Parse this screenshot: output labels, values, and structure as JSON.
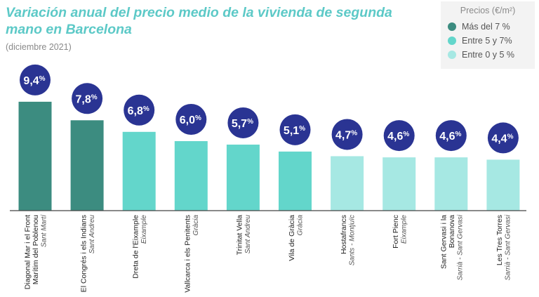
{
  "title": "Variación anual del precio medio de la vivienda de segunda mano en Barcelona",
  "subtitle": "(diciembre 2021)",
  "legend": {
    "title": "Precios (€/m²)",
    "items": [
      {
        "label": "Más del 7 %",
        "color": "#3c8c80"
      },
      {
        "label": "Entre 5 y 7%",
        "color": "#63d6cb"
      },
      {
        "label": "Entre 0 y 5 %",
        "color": "#a6e8e3"
      }
    ]
  },
  "chart_data": {
    "type": "bar",
    "title": "Variación anual del precio medio de la vivienda de segunda mano en Barcelona",
    "subtitle": "(diciembre 2021)",
    "xlabel": "",
    "ylabel": "",
    "ylim": [
      0,
      10
    ],
    "grid": false,
    "legend_position": "top-right",
    "categories": [
      {
        "name": [
          "Diagonal Mar i el Front",
          "Marítim del Poblenou"
        ],
        "district": "Sant Martí"
      },
      {
        "name": [
          "El Congrés i els Indians"
        ],
        "district": "Sant Andreu"
      },
      {
        "name": [
          "Dreta de l'Eixample"
        ],
        "district": "Eixample"
      },
      {
        "name": [
          "Vallcarca i els Penitents"
        ],
        "district": "Gràcia"
      },
      {
        "name": [
          "Trinitat Vella"
        ],
        "district": "Sant Andreu"
      },
      {
        "name": [
          "Vila de Gràcia"
        ],
        "district": "Gràcia"
      },
      {
        "name": [
          "Hostafrancs"
        ],
        "district": "Sants - Montjuïc"
      },
      {
        "name": [
          "Fort Pienc"
        ],
        "district": "Eixample"
      },
      {
        "name": [
          "Sant Gervasi i la",
          "Bonanova"
        ],
        "district": "Sarrià - Sant Gervasi"
      },
      {
        "name": [
          "Les Tres Torres"
        ],
        "district": "Sarrià - Sant Gervasi"
      }
    ],
    "values": [
      9.4,
      7.8,
      6.8,
      6.0,
      5.7,
      5.1,
      4.7,
      4.6,
      4.6,
      4.4
    ],
    "labels": [
      "9,4%",
      "7,8%",
      "6,8%",
      "6,0%",
      "5,7%",
      "5,1%",
      "4,7%",
      "4,6%",
      "4,6%",
      "4,4%"
    ],
    "bar_colors": [
      "#3c8c80",
      "#3c8c80",
      "#63d6cb",
      "#63d6cb",
      "#63d6cb",
      "#63d6cb",
      "#a6e8e3",
      "#a6e8e3",
      "#a6e8e3",
      "#a6e8e3"
    ],
    "label_circle_color": "#2a3493",
    "axis_color": "#444444"
  }
}
